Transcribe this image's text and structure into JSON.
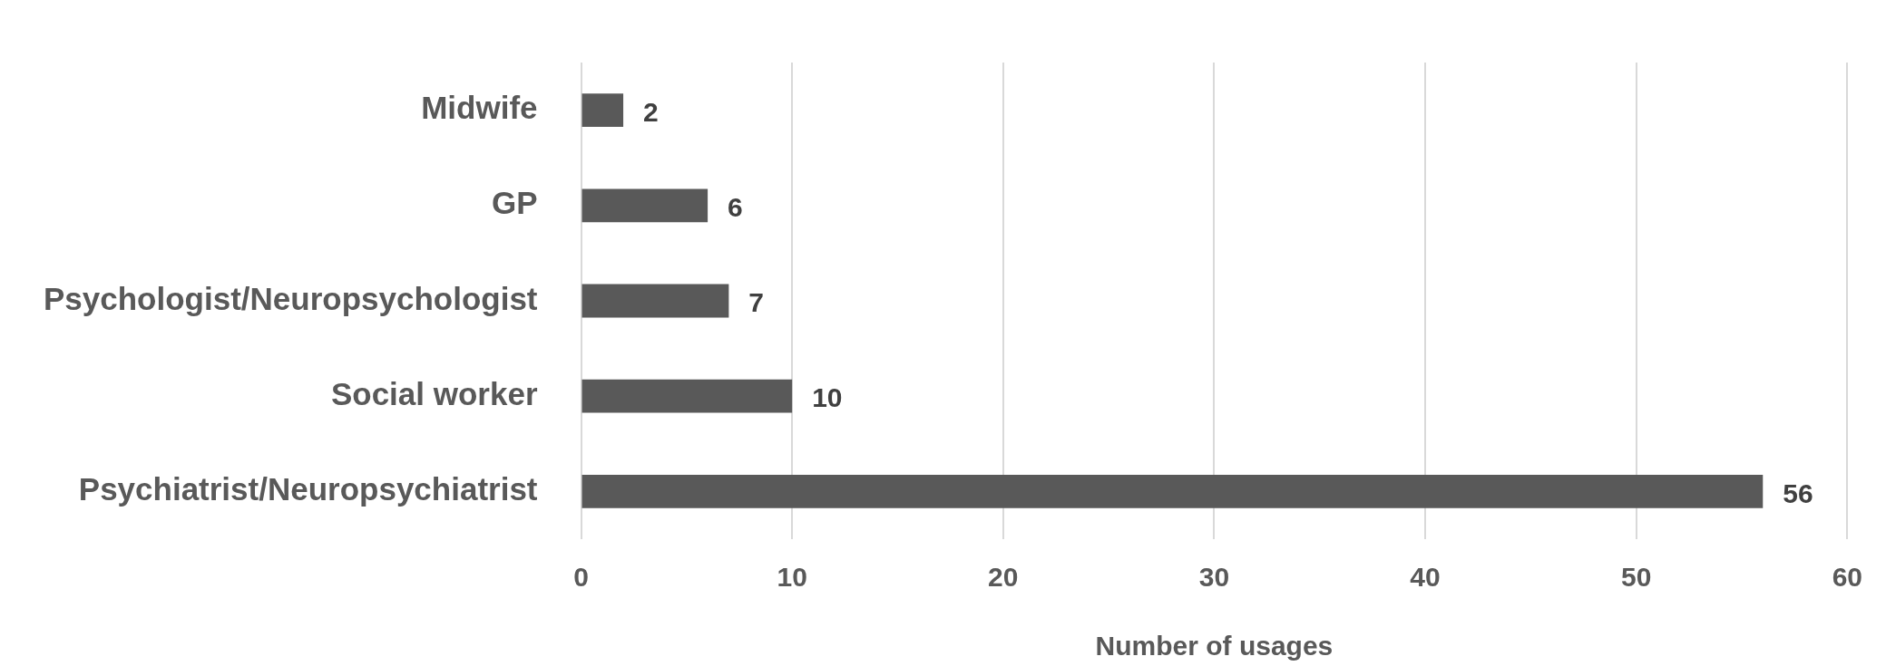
{
  "chart_data": {
    "type": "bar",
    "orientation": "horizontal",
    "xlabel": "Number of usages",
    "categories": [
      "Midwife",
      "GP",
      "Psychologist/Neuropsychologist",
      "Social worker",
      "Psychiatrist/Neuropsychiatrist"
    ],
    "values": [
      2,
      6,
      7,
      10,
      56
    ],
    "color": "#595959",
    "xlim": [
      0,
      60
    ],
    "xticks": [
      0,
      10,
      20,
      30,
      40,
      50,
      60
    ],
    "grid": "x",
    "data_labels": true,
    "legend": false
  }
}
